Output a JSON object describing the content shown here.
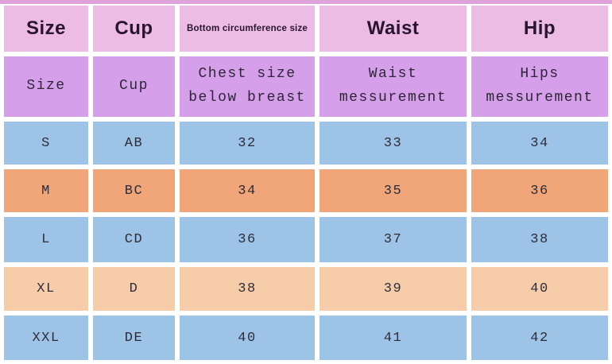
{
  "chart_data": {
    "type": "table",
    "columns": [
      {
        "header": "Size",
        "subheader": "Size"
      },
      {
        "header": "Cup",
        "subheader": "Cup"
      },
      {
        "header": "Bottom circumference size",
        "subheader": "Chest size\nbelow breast"
      },
      {
        "header": "Waist",
        "subheader": "Waist\nmessurement"
      },
      {
        "header": "Hip",
        "subheader": "Hips\nmessurement"
      }
    ],
    "rows": [
      {
        "theme": "blue",
        "cells": [
          "S",
          "AB",
          "32",
          "33",
          "34"
        ]
      },
      {
        "theme": "orange",
        "cells": [
          "M",
          "BC",
          "34",
          "35",
          "36"
        ]
      },
      {
        "theme": "blue",
        "cells": [
          "L",
          "CD",
          "36",
          "37",
          "38"
        ]
      },
      {
        "theme": "peach",
        "cells": [
          "XL",
          "D",
          "38",
          "39",
          "40"
        ]
      },
      {
        "theme": "blue",
        "cells": [
          "XXL",
          "DE",
          "40",
          "41",
          "42"
        ]
      }
    ],
    "layout_hints": {
      "grid": "on",
      "gridline_color": "#ffffff",
      "legend": "none"
    },
    "colors": {
      "header_bg": "#ecbce5",
      "subheader_bg": "#d59fea",
      "row_blue_bg": "#9dc3e6",
      "row_orange_bg": "#f0a678",
      "row_peach_bg": "#f7cda9",
      "top_strip": "#e0a2db",
      "text_dark": "#29152f"
    }
  }
}
